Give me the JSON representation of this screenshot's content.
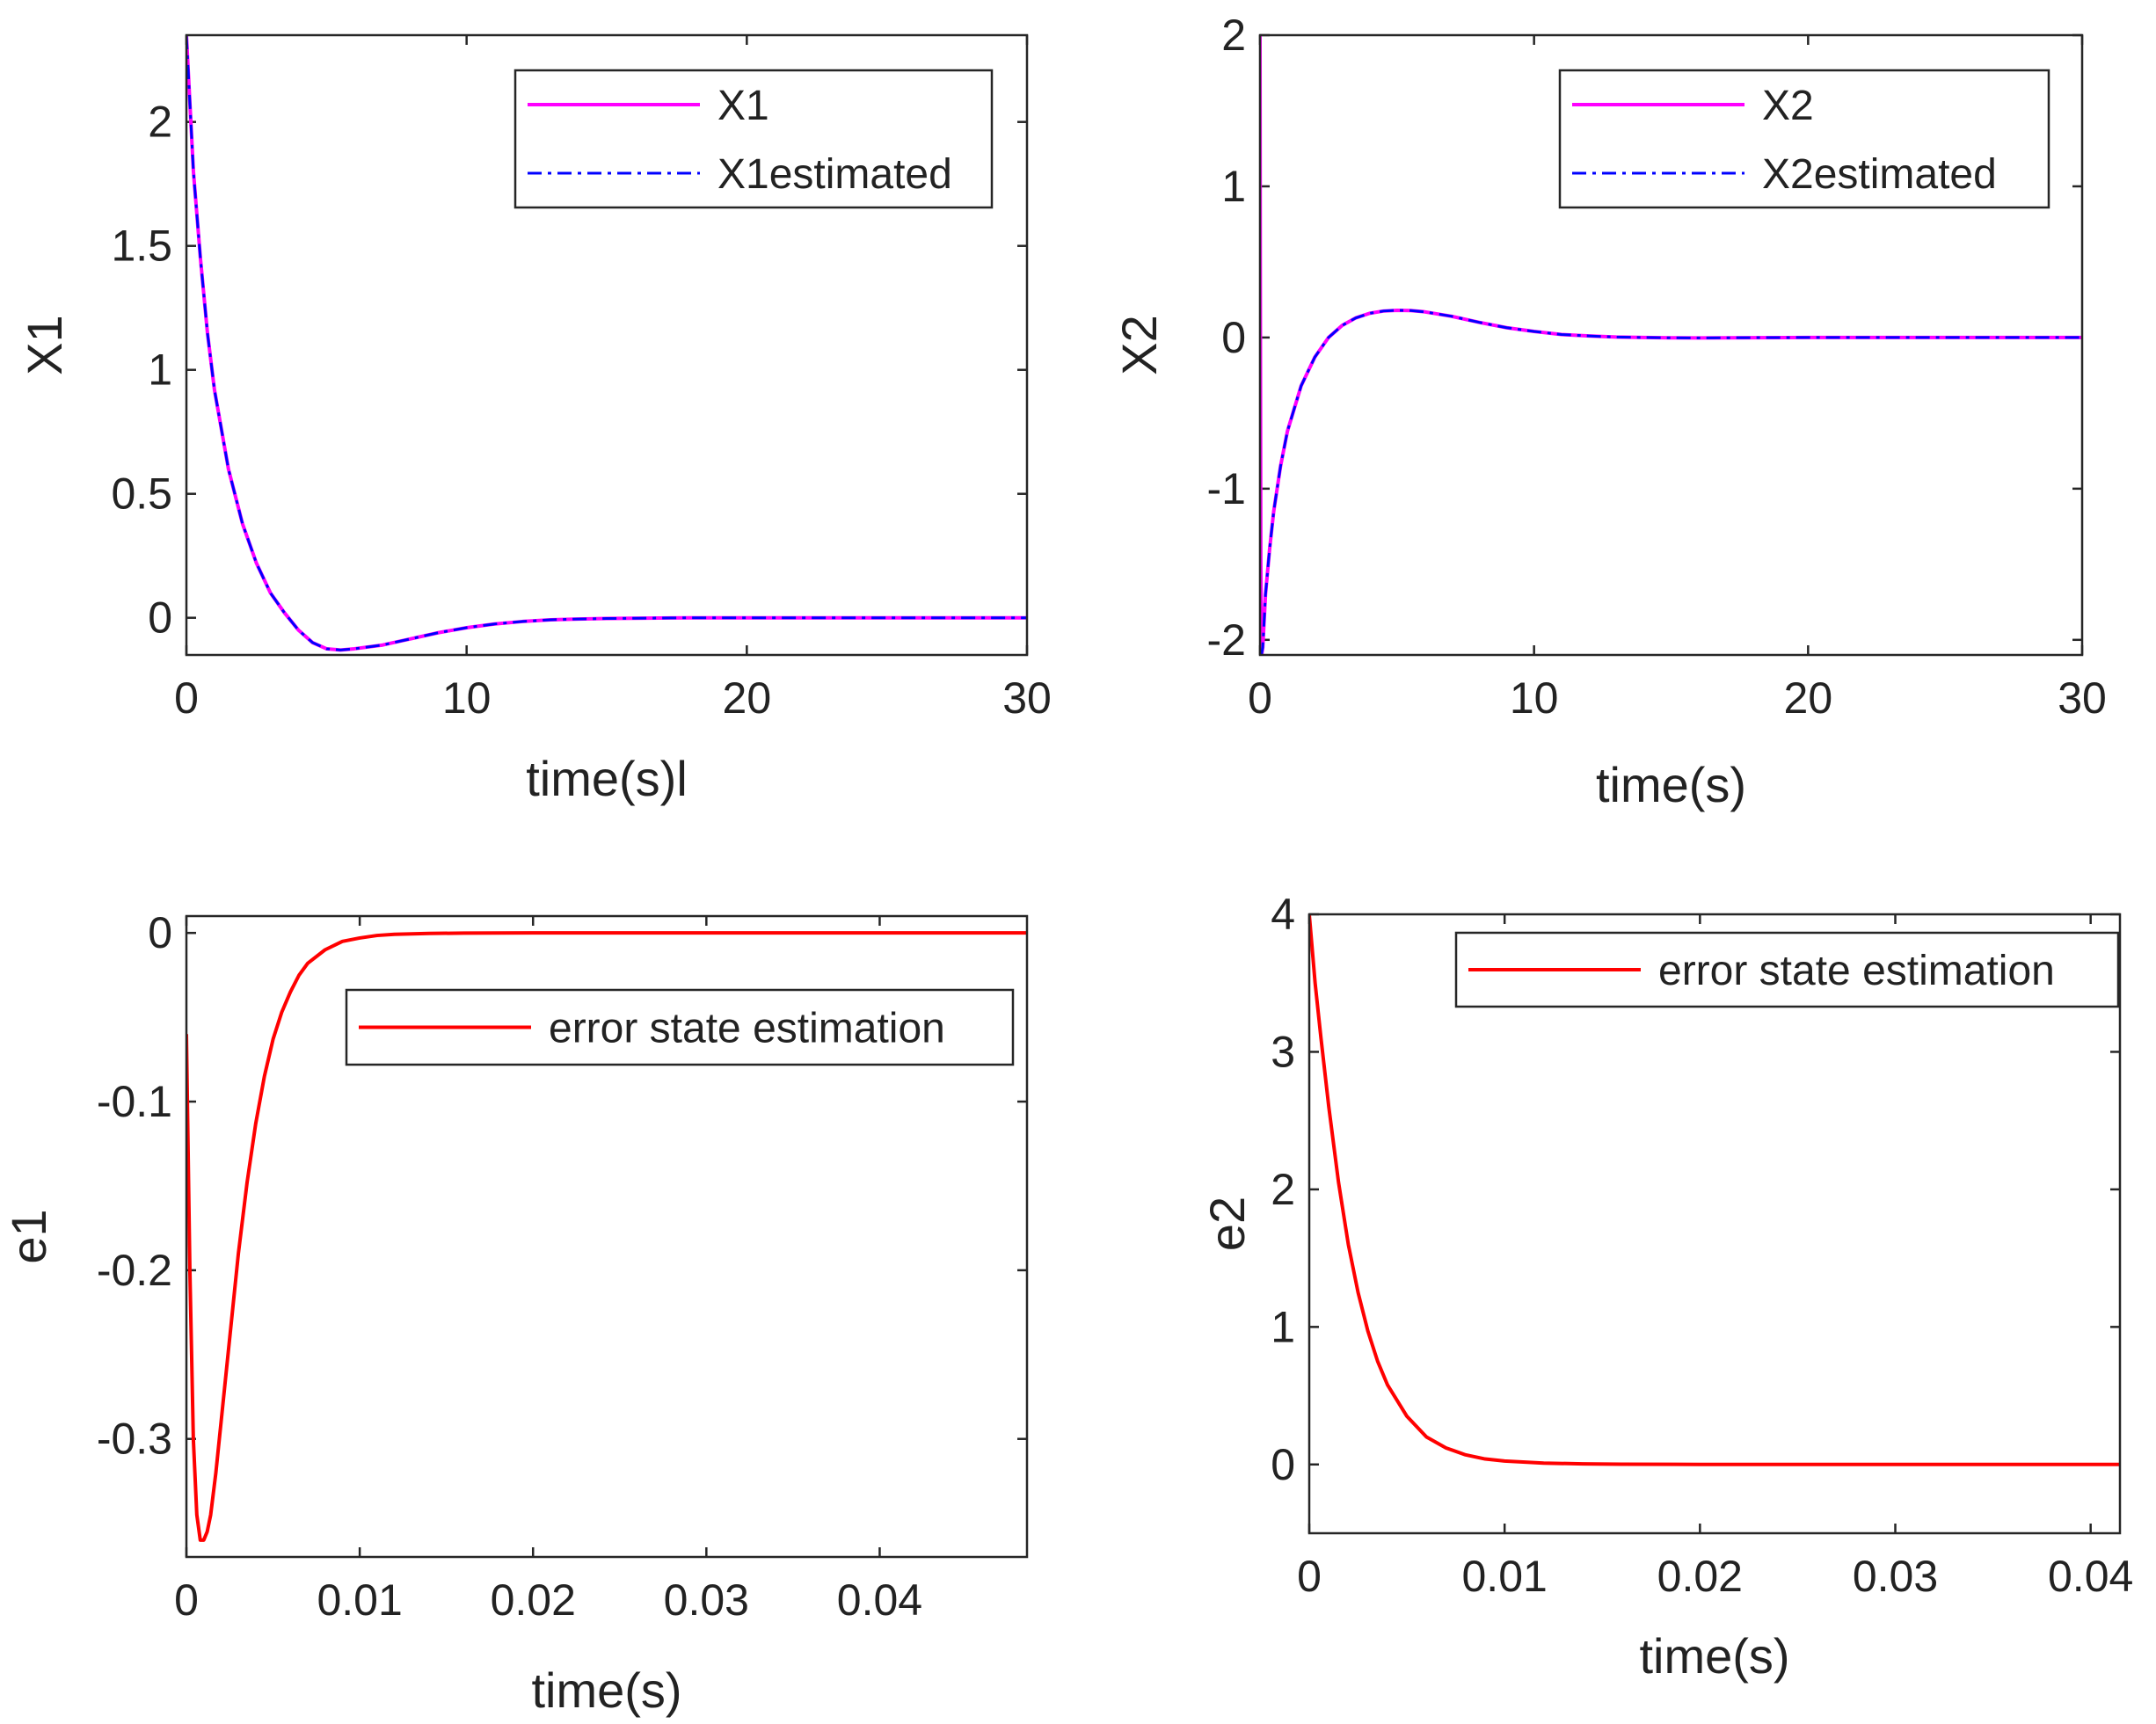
{
  "chart_data": [
    {
      "type": "line",
      "ylabel": "X1",
      "xlabel": "time(s)l",
      "xlim": [
        0,
        30
      ],
      "ylim": [
        -0.15,
        2.35
      ],
      "xticks": [
        0,
        10,
        20,
        30
      ],
      "xtick_labels": [
        "0",
        "10",
        "20",
        "30"
      ],
      "yticks": [
        0,
        0.5,
        1,
        1.5,
        2
      ],
      "ytick_labels": [
        "0",
        "0.5",
        "1",
        "1.5",
        "2"
      ],
      "legend_position": "top-right",
      "series": [
        {
          "name": "X1",
          "color": "#ff00ff",
          "style": "solid",
          "x": [
            0,
            0.25,
            0.5,
            0.75,
            1,
            1.5,
            2,
            2.5,
            3,
            3.5,
            4,
            4.5,
            5,
            5.5,
            6,
            7,
            8,
            9,
            10,
            11,
            12,
            13,
            14,
            15,
            16,
            18,
            20,
            25,
            30
          ],
          "y": [
            2.35,
            1.8,
            1.45,
            1.15,
            0.92,
            0.6,
            0.38,
            0.22,
            0.1,
            0.02,
            -0.05,
            -0.1,
            -0.125,
            -0.13,
            -0.125,
            -0.11,
            -0.085,
            -0.06,
            -0.04,
            -0.025,
            -0.015,
            -0.008,
            -0.005,
            -0.003,
            -0.002,
            0,
            0,
            0,
            0
          ]
        },
        {
          "name": "X1estimated",
          "color": "#0000ff",
          "style": "dashdot",
          "x": [
            0,
            0.25,
            0.5,
            0.75,
            1,
            1.5,
            2,
            2.5,
            3,
            3.5,
            4,
            4.5,
            5,
            5.5,
            6,
            7,
            8,
            9,
            10,
            11,
            12,
            13,
            14,
            15,
            16,
            18,
            20,
            25,
            30
          ],
          "y": [
            2.35,
            1.8,
            1.45,
            1.15,
            0.92,
            0.6,
            0.38,
            0.22,
            0.1,
            0.02,
            -0.05,
            -0.1,
            -0.125,
            -0.13,
            -0.125,
            -0.11,
            -0.085,
            -0.06,
            -0.04,
            -0.025,
            -0.015,
            -0.008,
            -0.005,
            -0.003,
            -0.002,
            0,
            0,
            0,
            0
          ]
        }
      ]
    },
    {
      "type": "line",
      "ylabel": "X2",
      "xlabel": "time(s)",
      "xlim": [
        0,
        30
      ],
      "ylim": [
        -2.1,
        2
      ],
      "xticks": [
        0,
        10,
        20,
        30
      ],
      "xtick_labels": [
        "0",
        "10",
        "20",
        "30"
      ],
      "yticks": [
        -2,
        -1,
        0,
        1,
        2
      ],
      "ytick_labels": [
        "-2",
        "-1",
        "0",
        "1",
        "2"
      ],
      "legend_position": "top-right",
      "series": [
        {
          "name": "X2",
          "color": "#ff00ff",
          "style": "solid",
          "x": [
            0,
            0.01,
            0.03,
            0.06,
            0.1,
            0.2,
            0.35,
            0.5,
            0.75,
            1,
            1.5,
            2,
            2.5,
            3,
            3.5,
            4,
            4.5,
            5,
            5.5,
            6,
            7,
            8,
            9,
            10,
            11,
            12,
            13,
            14,
            15,
            16,
            18,
            20,
            25,
            30
          ],
          "y": [
            2,
            0.5,
            -1.5,
            -2.1,
            -2.05,
            -1.7,
            -1.4,
            -1.15,
            -0.85,
            -0.62,
            -0.32,
            -0.13,
            0,
            0.08,
            0.13,
            0.16,
            0.175,
            0.18,
            0.178,
            0.17,
            0.14,
            0.1,
            0.065,
            0.04,
            0.02,
            0.01,
            0.003,
            0,
            -0.002,
            -0.003,
            -0.001,
            0,
            0,
            0
          ]
        },
        {
          "name": "X2estimated",
          "color": "#0000ff",
          "style": "dashdot",
          "x": [
            0,
            0.05,
            0.1,
            0.2,
            0.35,
            0.5,
            0.75,
            1,
            1.5,
            2,
            2.5,
            3,
            3.5,
            4,
            4.5,
            5,
            5.5,
            6,
            7,
            8,
            9,
            10,
            11,
            12,
            13,
            14,
            15,
            16,
            18,
            20,
            25,
            30
          ],
          "y": [
            -2.1,
            -2.1,
            -2.05,
            -1.7,
            -1.4,
            -1.15,
            -0.85,
            -0.62,
            -0.32,
            -0.13,
            0,
            0.08,
            0.13,
            0.16,
            0.175,
            0.18,
            0.178,
            0.17,
            0.14,
            0.1,
            0.065,
            0.04,
            0.02,
            0.01,
            0.003,
            0,
            -0.002,
            -0.003,
            -0.001,
            0,
            0,
            0
          ]
        }
      ]
    },
    {
      "type": "line",
      "ylabel": "e1",
      "xlabel": "time(s)",
      "xlim": [
        0,
        0.0485
      ],
      "ylim": [
        -0.37,
        0.01
      ],
      "xticks": [
        0,
        0.01,
        0.02,
        0.03,
        0.04
      ],
      "xtick_labels": [
        "0",
        "0.01",
        "0.02",
        "0.03",
        "0.04"
      ],
      "yticks": [
        0,
        -0.1,
        -0.2,
        -0.3
      ],
      "ytick_labels": [
        "0",
        "-0.1",
        "-0.2",
        "-0.3"
      ],
      "legend_position": "top-right",
      "series": [
        {
          "name": "error state estimation",
          "color": "#ff0000",
          "style": "solid",
          "x": [
            0,
            0.0002,
            0.0004,
            0.0006,
            0.0008,
            0.001,
            0.0012,
            0.0014,
            0.0017,
            0.002,
            0.0025,
            0.003,
            0.0035,
            0.004,
            0.0045,
            0.005,
            0.0055,
            0.006,
            0.0065,
            0.007,
            0.008,
            0.009,
            0.01,
            0.011,
            0.012,
            0.014,
            0.016,
            0.02,
            0.03,
            0.0485
          ],
          "y": [
            -0.06,
            -0.2,
            -0.3,
            -0.345,
            -0.36,
            -0.36,
            -0.355,
            -0.345,
            -0.32,
            -0.29,
            -0.24,
            -0.19,
            -0.148,
            -0.113,
            -0.085,
            -0.063,
            -0.047,
            -0.035,
            -0.025,
            -0.018,
            -0.01,
            -0.005,
            -0.003,
            -0.0015,
            -0.0008,
            -0.0003,
            -0.0001,
            0,
            0,
            0
          ]
        }
      ]
    },
    {
      "type": "line",
      "ylabel": "e2",
      "xlabel": "time(s)",
      "xlim": [
        0,
        0.0415
      ],
      "ylim": [
        -0.5,
        4
      ],
      "xticks": [
        0,
        0.01,
        0.02,
        0.03,
        0.04
      ],
      "xtick_labels": [
        "0",
        "0.01",
        "0.02",
        "0.03",
        "0.04"
      ],
      "yticks": [
        0,
        1,
        2,
        3,
        4
      ],
      "ytick_labels": [
        "0",
        "1",
        "2",
        "3",
        "4"
      ],
      "legend_position": "top-right",
      "series": [
        {
          "name": "error state estimation",
          "color": "#ff0000",
          "style": "solid",
          "x": [
            0,
            0.0003,
            0.0006,
            0.001,
            0.0015,
            0.002,
            0.0025,
            0.003,
            0.0035,
            0.004,
            0.005,
            0.006,
            0.007,
            0.008,
            0.009,
            0.01,
            0.012,
            0.014,
            0.016,
            0.02,
            0.03,
            0.0415
          ],
          "y": [
            4,
            3.5,
            3.1,
            2.6,
            2.05,
            1.6,
            1.25,
            0.97,
            0.75,
            0.58,
            0.35,
            0.2,
            0.12,
            0.07,
            0.04,
            0.025,
            0.01,
            0.004,
            0.002,
            0,
            0,
            0
          ]
        }
      ]
    }
  ]
}
